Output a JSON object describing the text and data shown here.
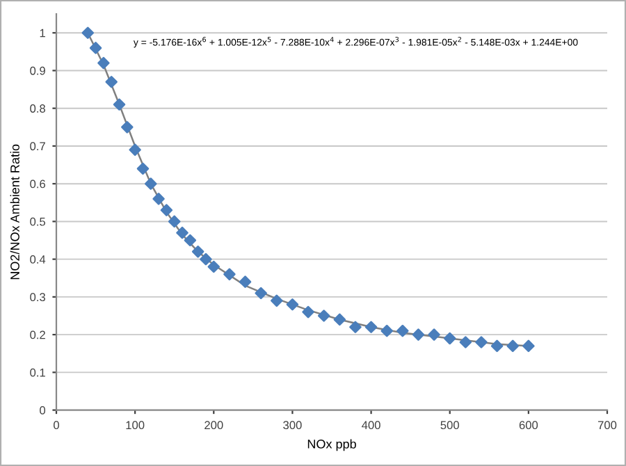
{
  "chart_data": {
    "type": "scatter",
    "xlabel": "NOx ppb",
    "ylabel": "NO2/NOx Ambient Ratio",
    "series": [
      {
        "color": "#4a7ebb",
        "marker": "diamond",
        "x": [
          40,
          50,
          60,
          70,
          80,
          90,
          100,
          110,
          120,
          130,
          140,
          150,
          160,
          170,
          180,
          190,
          200,
          220,
          240,
          260,
          280,
          300,
          320,
          340,
          360,
          380,
          400,
          420,
          440,
          460,
          480,
          500,
          520,
          540,
          560,
          580,
          600
        ],
        "values": [
          1.0,
          0.96,
          0.92,
          0.87,
          0.81,
          0.75,
          0.69,
          0.64,
          0.6,
          0.56,
          0.53,
          0.5,
          0.47,
          0.45,
          0.42,
          0.4,
          0.38,
          0.36,
          0.34,
          0.31,
          0.29,
          0.28,
          0.26,
          0.25,
          0.24,
          0.22,
          0.22,
          0.21,
          0.21,
          0.2,
          0.2,
          0.19,
          0.18,
          0.18,
          0.17,
          0.17,
          0.17
        ]
      },
      {
        "type": "line",
        "color": "#808080",
        "marker": "none",
        "x": [
          40,
          60,
          80,
          100,
          120,
          140,
          160,
          180,
          200,
          240,
          280,
          320,
          360,
          400,
          440,
          480,
          520,
          560,
          600
        ],
        "values": [
          1.0,
          0.915,
          0.81,
          0.7,
          0.6,
          0.525,
          0.465,
          0.42,
          0.385,
          0.33,
          0.295,
          0.265,
          0.24,
          0.22,
          0.205,
          0.195,
          0.185,
          0.175,
          0.17
        ]
      }
    ],
    "annotations": [
      "y = -5.176E-16x$^{6}$ + 1.005E-12x$^{5}$ - 7.288E-10x$^{4}$ + 2.296E-07x$^{3}$ - 1.981E-05x$^{2}$ - 5.148E-03x + 1.244E+00"
    ],
    "xlim": [
      0,
      700
    ],
    "xticks": [
      0,
      100,
      200,
      300,
      400,
      500,
      600,
      700
    ],
    "ylim": [
      0,
      1.05
    ],
    "yticks": [
      0,
      0.1,
      0.2,
      0.3,
      0.4,
      0.5,
      0.6,
      0.7,
      0.8,
      0.9,
      1
    ],
    "grid": "y",
    "legend": false
  }
}
